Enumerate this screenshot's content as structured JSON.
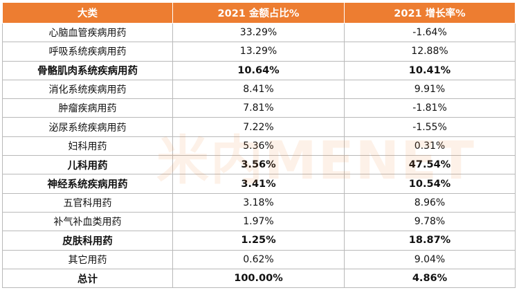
{
  "table": {
    "headers": [
      "大类",
      "2021 金额占比%",
      "2021 增长率%"
    ],
    "rows": [
      {
        "category": "心脑血管疾病用药",
        "share": "33.29%",
        "growth": "-1.64%",
        "bold": false
      },
      {
        "category": "呼吸系统疾病用药",
        "share": "13.29%",
        "growth": "12.88%",
        "bold": false
      },
      {
        "category": "骨骼肌肉系统疾病用药",
        "share": "10.64%",
        "growth": "10.41%",
        "bold": true
      },
      {
        "category": "消化系统疾病用药",
        "share": "8.41%",
        "growth": "9.91%",
        "bold": false
      },
      {
        "category": "肿瘤疾病用药",
        "share": "7.81%",
        "growth": "-1.81%",
        "bold": false
      },
      {
        "category": "泌尿系统疾病用药",
        "share": "7.22%",
        "growth": "-1.55%",
        "bold": false
      },
      {
        "category": "妇科用药",
        "share": "5.36%",
        "growth": "0.31%",
        "bold": false
      },
      {
        "category": "儿科用药",
        "share": "3.56%",
        "growth": "47.54%",
        "bold": true
      },
      {
        "category": "神经系统疾病用药",
        "share": "3.41%",
        "growth": "10.54%",
        "bold": true
      },
      {
        "category": "五官科用药",
        "share": "3.18%",
        "growth": "8.96%",
        "bold": false
      },
      {
        "category": "补气补血类用药",
        "share": "1.97%",
        "growth": "9.78%",
        "bold": false
      },
      {
        "category": "皮肤科用药",
        "share": "1.25%",
        "growth": "18.87%",
        "bold": true
      },
      {
        "category": "其它用药",
        "share": "0.62%",
        "growth": "9.04%",
        "bold": false
      },
      {
        "category": "总计",
        "share": "100.00%",
        "growth": "4.86%",
        "bold": true
      }
    ]
  },
  "watermark": "米内MENET",
  "colors": {
    "header_bg": "#ED7D31",
    "header_text": "#FFFFFF",
    "border": "#B9B9B9"
  }
}
